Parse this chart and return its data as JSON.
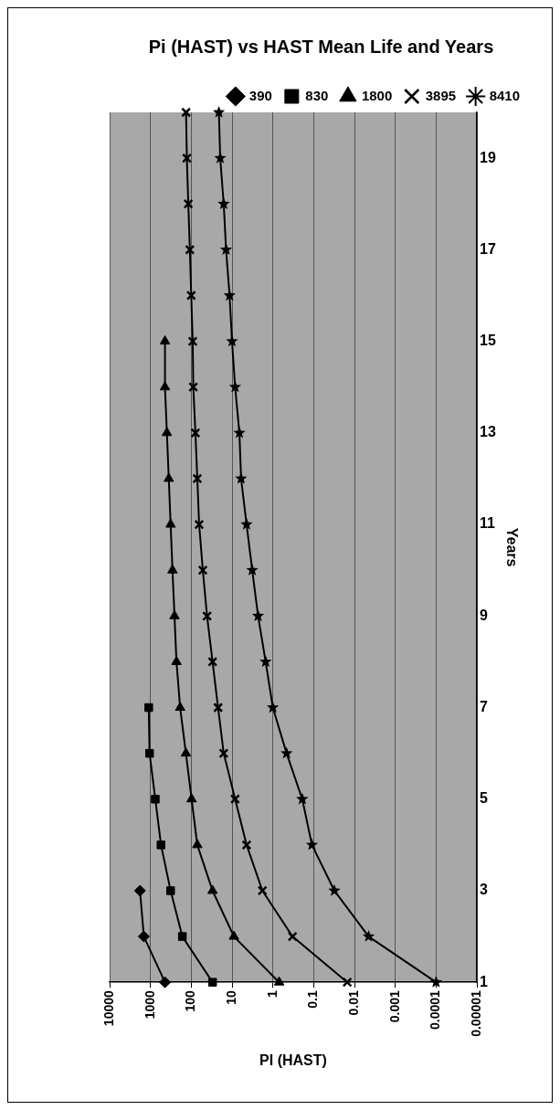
{
  "chart_data": {
    "type": "line",
    "orientation": "horizontal",
    "title": "Pi (HAST) vs HAST Mean Life and Years",
    "xlabel": "PI (HAST)",
    "ylabel": "Years",
    "categories": [
      null,
      "19",
      null,
      "17",
      null,
      "15",
      null,
      "13",
      null,
      "11",
      null,
      "9",
      null,
      "7",
      null,
      "5",
      null,
      "3",
      null,
      "1"
    ],
    "series": [
      {
        "name": "390",
        "color": "#000000",
        "marker": "diamond",
        "values": [
          null,
          null,
          null,
          null,
          null,
          null,
          null,
          null,
          null,
          null,
          null,
          null,
          null,
          null,
          null,
          null,
          null,
          1800,
          1450,
          440
        ]
      },
      {
        "name": "830",
        "color": "#000000",
        "marker": "square",
        "values": [
          null,
          null,
          null,
          null,
          null,
          null,
          null,
          null,
          null,
          null,
          null,
          null,
          null,
          1100,
          1050,
          760,
          550,
          320,
          165,
          30
        ]
      },
      {
        "name": "1800",
        "color": "#000000",
        "marker": "triangle",
        "values": [
          null,
          null,
          null,
          null,
          null,
          440,
          440,
          395,
          355,
          320,
          288,
          257,
          230,
          187,
          135,
          98,
          71,
          30,
          9,
          0.7
        ]
      },
      {
        "name": "3895",
        "color": "#000000",
        "marker": "cross",
        "values": [
          134,
          128,
          118,
          108,
          100,
          92,
          89,
          79,
          71,
          64,
          52,
          41,
          30,
          22,
          16,
          8.4,
          4.4,
          1.8,
          0.33,
          0.015
        ]
      },
      {
        "name": "8410",
        "color": "#000000",
        "marker": "star",
        "values": [
          21,
          19.5,
          16,
          14,
          11.5,
          10,
          8.4,
          6.6,
          6,
          4.4,
          3.2,
          2.3,
          1.5,
          1,
          0.46,
          0.19,
          0.11,
          0.031,
          0.0045,
          0.0001
        ]
      }
    ],
    "log": "x",
    "xlim": [
      10000,
      1e-05
    ],
    "xticks": [
      10000,
      1000,
      100,
      10,
      1,
      0.1,
      0.01,
      0.001,
      0.0001,
      {
        "value": 1e-05,
        "label": "0.00001"
      }
    ],
    "grid": "x",
    "legend": "top right",
    "line_style": "solid"
  }
}
